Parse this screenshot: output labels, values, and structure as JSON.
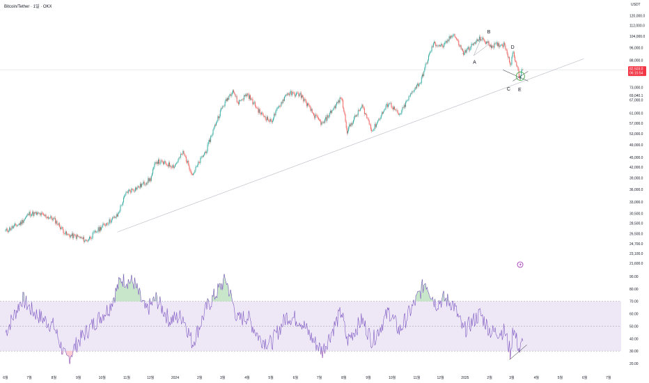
{
  "header": {
    "title": "Bitcoin/Tether · 1일 · OKX",
    "currency": "USDT"
  },
  "chart_data": [
    {
      "type": "candlestick",
      "title": "Bitcoin/Tether · 1일 · OKX",
      "y_scale": "log",
      "ylim": [
        21600,
        122000
      ],
      "y_ticks": [
        "120,000.0",
        "112,000.0",
        "104,000.0",
        "96,000.0",
        "88,000.0",
        "73,000.0",
        "67,000.0",
        "61,000.0",
        "57,000.0",
        "53,000.0",
        "49,000.0",
        "45,000.0",
        "42,000.0",
        "39,000.0",
        "36,000.0",
        "33,000.0",
        "30,500.0",
        "28,500.0",
        "26,500.0",
        "24,700.0",
        "23,100.0",
        "21,600.0"
      ],
      "y_tick_values": [
        120000,
        112000,
        104000,
        96000,
        88000,
        73000,
        67000,
        61000,
        57000,
        53000,
        49000,
        45000,
        42000,
        39000,
        36000,
        33000,
        30500,
        28500,
        26500,
        24700,
        23100,
        21600
      ],
      "x_ticks": [
        "6월",
        "7월",
        "8월",
        "9월",
        "10월",
        "11월",
        "12월",
        "2024",
        "2월",
        "3월",
        "4월",
        "5월",
        "6월",
        "7월",
        "8월",
        "9월",
        "10월",
        "11월",
        "12월",
        "2025",
        "2월",
        "3월",
        "4월",
        "5월",
        "6월",
        "7월"
      ],
      "current_price": {
        "label": "82,503.0",
        "value": 82503,
        "countdown": "06:15:54",
        "color": "#f23645"
      },
      "highlight_tick": {
        "label": "69,040.1",
        "value": 69040.1
      },
      "series": [
        {
          "x": "2023-06-01",
          "close": 27000
        },
        {
          "x": "2023-06-20",
          "close": 28500
        },
        {
          "x": "2023-07-01",
          "close": 30500
        },
        {
          "x": "2023-07-15",
          "close": 30300
        },
        {
          "x": "2023-08-01",
          "close": 29300
        },
        {
          "x": "2023-08-17",
          "close": 26300
        },
        {
          "x": "2023-09-01",
          "close": 25900
        },
        {
          "x": "2023-09-11",
          "close": 25200
        },
        {
          "x": "2023-10-01",
          "close": 27900
        },
        {
          "x": "2023-10-20",
          "close": 30000
        },
        {
          "x": "2023-11-01",
          "close": 35400
        },
        {
          "x": "2023-11-15",
          "close": 36500
        },
        {
          "x": "2023-12-01",
          "close": 38700
        },
        {
          "x": "2023-12-08",
          "close": 43800
        },
        {
          "x": "2023-12-31",
          "close": 42300
        },
        {
          "x": "2024-01-11",
          "close": 46500
        },
        {
          "x": "2024-01-23",
          "close": 39900
        },
        {
          "x": "2024-02-10",
          "close": 47500
        },
        {
          "x": "2024-02-28",
          "close": 62500
        },
        {
          "x": "2024-03-14",
          "close": 72000
        },
        {
          "x": "2024-03-20",
          "close": 65500
        },
        {
          "x": "2024-04-01",
          "close": 69700
        },
        {
          "x": "2024-04-17",
          "close": 61300
        },
        {
          "x": "2024-05-01",
          "close": 57500
        },
        {
          "x": "2024-05-21",
          "close": 70000
        },
        {
          "x": "2024-06-07",
          "close": 69500
        },
        {
          "x": "2024-06-24",
          "close": 60300
        },
        {
          "x": "2024-07-05",
          "close": 56500
        },
        {
          "x": "2024-07-29",
          "close": 68000
        },
        {
          "x": "2024-08-05",
          "close": 54000
        },
        {
          "x": "2024-08-24",
          "close": 64000
        },
        {
          "x": "2024-09-06",
          "close": 54000
        },
        {
          "x": "2024-09-27",
          "close": 65800
        },
        {
          "x": "2024-10-10",
          "close": 59900
        },
        {
          "x": "2024-10-29",
          "close": 72500
        },
        {
          "x": "2024-11-06",
          "close": 75900
        },
        {
          "x": "2024-11-22",
          "close": 98800
        },
        {
          "x": "2024-12-05",
          "close": 97000
        },
        {
          "x": "2024-12-17",
          "close": 106100
        },
        {
          "x": "2024-12-30",
          "close": 92400
        },
        {
          "x": "2025-01-20",
          "close": 102500
        },
        {
          "x": "2025-02-03",
          "close": 97500
        },
        {
          "x": "2025-02-20",
          "close": 98400
        },
        {
          "x": "2025-02-28",
          "close": 84300
        },
        {
          "x": "2025-03-02",
          "close": 94200
        },
        {
          "x": "2025-03-11",
          "close": 78500
        },
        {
          "x": "2025-03-15",
          "close": 82503
        }
      ],
      "annotations": [
        {
          "label": "A",
          "x": "2025-01-13",
          "y": 86000
        },
        {
          "label": "B",
          "x": "2025-01-31",
          "y": 106000
        },
        {
          "label": "C",
          "x": "2025-02-25",
          "y": 71500
        },
        {
          "label": "D",
          "x": "2025-03-02",
          "y": 95500
        },
        {
          "label": "E",
          "x": "2025-03-11",
          "y": 71000
        }
      ],
      "trendline": {
        "from": {
          "x": "2023-10-20",
          "y": 26800
        },
        "to": {
          "x": "2025-05-31",
          "y": 89000
        }
      }
    },
    {
      "type": "line",
      "title": "",
      "ylim": [
        20,
        90
      ],
      "y_ticks": [
        "90.00",
        "80.00",
        "70.00",
        "60.00",
        "50.00",
        "40.00",
        "30.00",
        "20.00"
      ],
      "y_tick_values": [
        90,
        80,
        70,
        60,
        50,
        40,
        30,
        20
      ],
      "bands": {
        "upper": 70,
        "middle": 50,
        "lower": 30
      },
      "series": [
        {
          "x": "2023-06-01",
          "value": 45
        },
        {
          "x": "2023-06-22",
          "value": 72
        },
        {
          "x": "2023-07-05",
          "value": 62
        },
        {
          "x": "2023-07-20",
          "value": 55
        },
        {
          "x": "2023-08-01",
          "value": 50
        },
        {
          "x": "2023-08-17",
          "value": 22
        },
        {
          "x": "2023-09-01",
          "value": 38
        },
        {
          "x": "2023-09-20",
          "value": 52
        },
        {
          "x": "2023-10-10",
          "value": 65
        },
        {
          "x": "2023-10-25",
          "value": 88
        },
        {
          "x": "2023-11-10",
          "value": 85
        },
        {
          "x": "2023-11-25",
          "value": 62
        },
        {
          "x": "2023-12-08",
          "value": 72
        },
        {
          "x": "2023-12-25",
          "value": 55
        },
        {
          "x": "2024-01-11",
          "value": 58
        },
        {
          "x": "2024-01-23",
          "value": 36
        },
        {
          "x": "2024-02-10",
          "value": 65
        },
        {
          "x": "2024-03-05",
          "value": 88
        },
        {
          "x": "2024-03-20",
          "value": 55
        },
        {
          "x": "2024-04-01",
          "value": 58
        },
        {
          "x": "2024-04-17",
          "value": 40
        },
        {
          "x": "2024-05-01",
          "value": 36
        },
        {
          "x": "2024-05-21",
          "value": 58
        },
        {
          "x": "2024-06-07",
          "value": 55
        },
        {
          "x": "2024-06-24",
          "value": 38
        },
        {
          "x": "2024-07-05",
          "value": 30
        },
        {
          "x": "2024-07-29",
          "value": 62
        },
        {
          "x": "2024-08-05",
          "value": 38
        },
        {
          "x": "2024-08-24",
          "value": 55
        },
        {
          "x": "2024-09-06",
          "value": 38
        },
        {
          "x": "2024-09-27",
          "value": 62
        },
        {
          "x": "2024-10-10",
          "value": 46
        },
        {
          "x": "2024-10-29",
          "value": 68
        },
        {
          "x": "2024-11-12",
          "value": 86
        },
        {
          "x": "2024-11-25",
          "value": 68
        },
        {
          "x": "2024-12-05",
          "value": 72
        },
        {
          "x": "2024-12-17",
          "value": 68
        },
        {
          "x": "2024-12-30",
          "value": 46
        },
        {
          "x": "2025-01-20",
          "value": 60
        },
        {
          "x": "2025-02-03",
          "value": 45
        },
        {
          "x": "2025-02-20",
          "value": 46
        },
        {
          "x": "2025-02-28",
          "value": 27
        },
        {
          "x": "2025-03-02",
          "value": 50
        },
        {
          "x": "2025-03-11",
          "value": 30
        },
        {
          "x": "2025-03-15",
          "value": 38
        }
      ],
      "divergence_line": {
        "from": {
          "x": "2025-02-26",
          "y": 23
        },
        "to": {
          "x": "2025-03-20",
          "y": 35
        }
      }
    }
  ],
  "colors": {
    "up": "#26a69a",
    "down": "#ef5350",
    "rsi_line": "#7e57c2",
    "rsi_band": "#ede7f6",
    "trendline": "#b2b5be",
    "current_price": "#f23645",
    "lightning": "#9c27b0"
  },
  "icons": {
    "alert": "lightning-icon"
  }
}
